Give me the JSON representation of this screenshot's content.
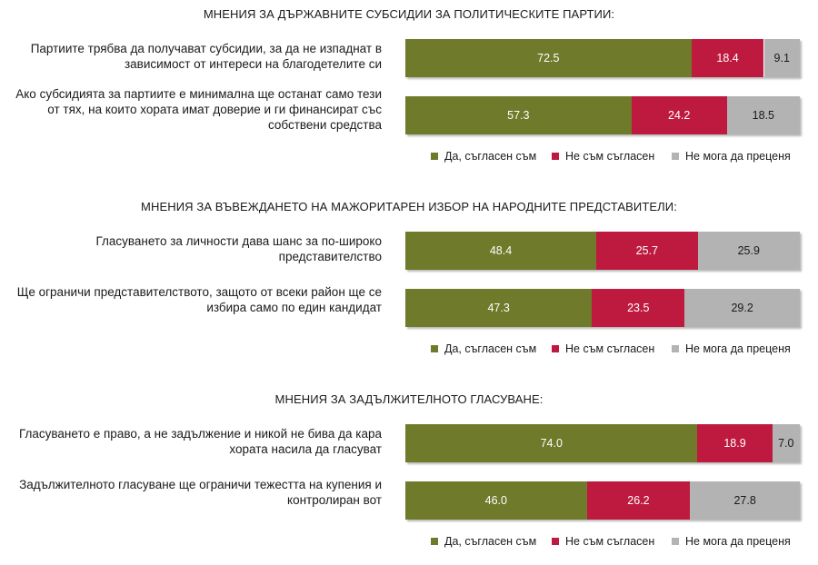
{
  "series": [
    {
      "name": "Да, съгласен съм",
      "color": "#6f7a2a"
    },
    {
      "name": "Не съм съгласен",
      "color": "#be1a3f"
    },
    {
      "name": "Не мога да преценя",
      "color": "#b3b3b3"
    }
  ],
  "chart_data": [
    {
      "type": "bar",
      "stacked": true,
      "orientation": "horizontal",
      "title": "МНЕНИЯ ЗА ДЪРЖАВНИТЕ СУБСИДИИ ЗА ПОЛИТИЧЕСКИТЕ ПАРТИИ:",
      "categories": [
        "Партиите трябва да получават субсидии, за да не изпаднат в зависимост от интереси на благодетелите си",
        "Ако субсидията за партиите е минимална ще останат само тези от тях, на които хората имат доверие и ги финансират със собствени средства"
      ],
      "series": [
        {
          "name": "Да, съгласен съм",
          "values": [
            72.5,
            57.3
          ]
        },
        {
          "name": "Не съм съгласен",
          "values": [
            18.4,
            24.2
          ]
        },
        {
          "name": "Не мога да преценя",
          "values": [
            9.1,
            18.5
          ]
        }
      ],
      "legend": "bottom-right"
    },
    {
      "type": "bar",
      "stacked": true,
      "orientation": "horizontal",
      "title": "МНЕНИЯ ЗА ВЪВЕЖДАНЕТО НА МАЖОРИТАРЕН ИЗБОР НА НАРОДНИТЕ ПРЕДСТАВИТЕЛИ:",
      "categories": [
        "Гласуването за личности дава шанс за по-широко представителство",
        "Ще ограничи представителството, защото от всеки район ще се избира само по един кандидат"
      ],
      "series": [
        {
          "name": "Да, съгласен съм",
          "values": [
            48.4,
            47.3
          ]
        },
        {
          "name": "Не съм съгласен",
          "values": [
            25.7,
            23.5
          ]
        },
        {
          "name": "Не мога да преценя",
          "values": [
            25.9,
            29.2
          ]
        }
      ],
      "legend": "bottom-right"
    },
    {
      "type": "bar",
      "stacked": true,
      "orientation": "horizontal",
      "title": "МНЕНИЯ ЗА ЗАДЪЛЖИТЕЛНОТО ГЛАСУВАНЕ:",
      "categories": [
        "Гласуването е право, а не задължение и никой не бива да кара хората насила да гласуват",
        "Задължителното гласуване ще ограничи тежестта на купения и контролиран вот"
      ],
      "series": [
        {
          "name": "Да, съгласен съм",
          "values": [
            74.0,
            46.0
          ]
        },
        {
          "name": "Не съм съгласен",
          "values": [
            18.9,
            26.2
          ]
        },
        {
          "name": "Не мога да преценя",
          "values": [
            7.0,
            27.8
          ]
        }
      ],
      "legend": "bottom-right"
    }
  ]
}
